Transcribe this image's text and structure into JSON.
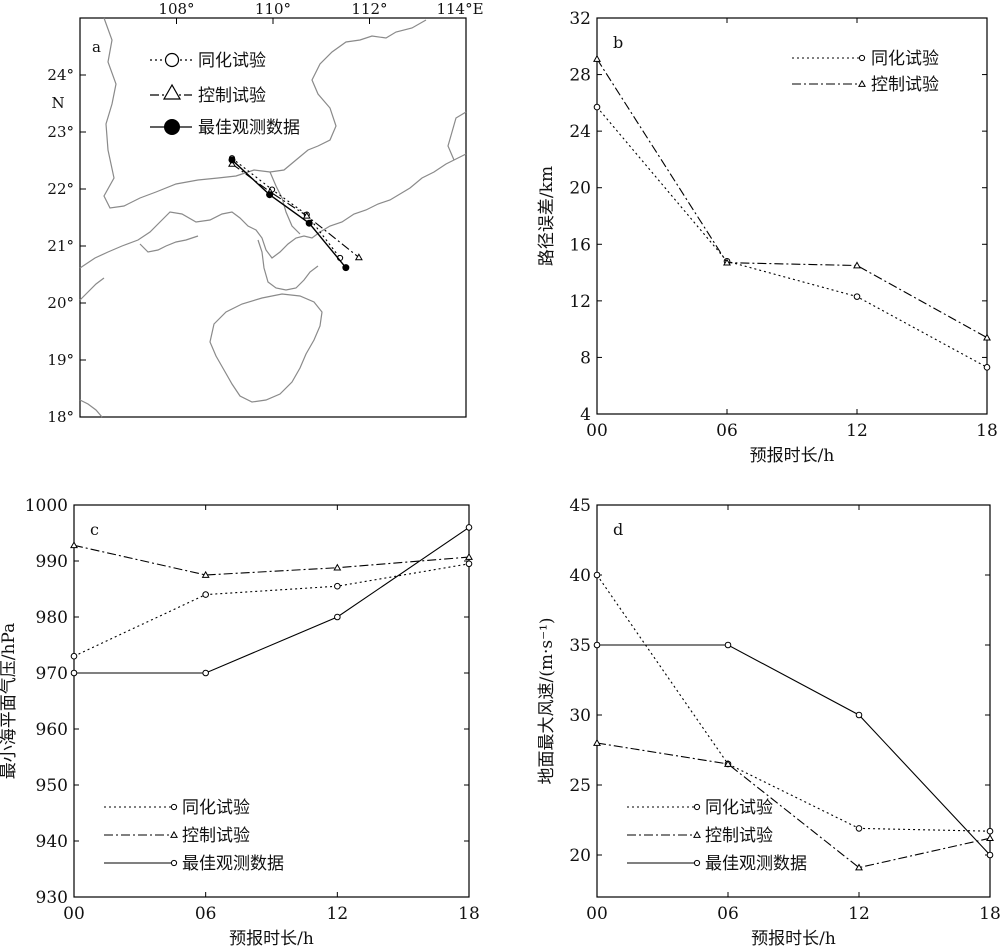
{
  "panels": [
    {
      "id": "a",
      "letter": "a",
      "type": "map",
      "lon_ticks": [
        "108°",
        "110°",
        "112°",
        "114°E"
      ],
      "lat_ticks": [
        "18°",
        "19°",
        "20°",
        "21°",
        "22°",
        "23°",
        "24°"
      ],
      "lat_unit": "N",
      "legend": [
        "同化试验",
        "控制试验",
        "最佳观测数据"
      ],
      "series": [
        {
          "name": "同化试验",
          "style": "dotted",
          "marker": "circle",
          "lon": [
            109.15,
            109.98,
            110.7,
            111.39
          ],
          "lat": [
            22.54,
            21.99,
            21.55,
            20.79
          ]
        },
        {
          "name": "控制试验",
          "style": "dashdot",
          "marker": "triangle",
          "lon": [
            109.15,
            109.94,
            110.7,
            111.78
          ],
          "lat": [
            22.44,
            21.95,
            21.53,
            20.8
          ]
        },
        {
          "name": "最佳观测数据",
          "style": "solid",
          "marker": "filled-circle",
          "lon": [
            109.15,
            109.93,
            110.75,
            111.51
          ],
          "lat": [
            22.51,
            21.9,
            21.4,
            20.62
          ]
        }
      ]
    },
    {
      "id": "b",
      "letter": "b",
      "type": "line",
      "x": [
        "00",
        "06",
        "12",
        "18"
      ],
      "ylabel": "路径误差/km",
      "xlabel": "预报时长/h",
      "yticks": [
        4,
        8,
        12,
        16,
        20,
        24,
        28,
        32
      ],
      "ylim": [
        4,
        32
      ],
      "legend_position": "top-right",
      "series": [
        {
          "name": "同化试验",
          "style": "dotted",
          "marker": "circle",
          "values": [
            25.7,
            14.8,
            12.3,
            7.3
          ]
        },
        {
          "name": "控制试验",
          "style": "dashdot",
          "marker": "triangle",
          "values": [
            29.1,
            14.7,
            14.5,
            9.4
          ]
        }
      ]
    },
    {
      "id": "c",
      "letter": "c",
      "type": "line",
      "x": [
        "00",
        "06",
        "12",
        "18"
      ],
      "ylabel": "最小海平面气压/hPa",
      "xlabel": "预报时长/h",
      "yticks": [
        930,
        940,
        950,
        960,
        970,
        980,
        990,
        1000
      ],
      "ylim": [
        930,
        1000
      ],
      "legend_position": "bottom-left",
      "series": [
        {
          "name": "同化试验",
          "style": "dotted",
          "marker": "circle",
          "values": [
            973,
            984,
            985.5,
            989.5
          ]
        },
        {
          "name": "控制试验",
          "style": "dashdot",
          "marker": "triangle",
          "values": [
            992.8,
            987.5,
            988.8,
            990.7
          ]
        },
        {
          "name": "最佳观测数据",
          "style": "solid",
          "marker": "circle",
          "values": [
            970,
            970,
            980,
            996
          ]
        }
      ]
    },
    {
      "id": "d",
      "letter": "d",
      "type": "line",
      "x": [
        "00",
        "06",
        "12",
        "18"
      ],
      "ylabel": "地面最大风速/(m·s⁻¹)",
      "xlabel": "预报时长/h",
      "yticks": [
        20,
        25,
        30,
        35,
        40,
        45
      ],
      "ylim": [
        17,
        45
      ],
      "legend_position": "bottom-left",
      "series": [
        {
          "name": "同化试验",
          "style": "dotted",
          "marker": "circle",
          "values": [
            40,
            26.5,
            21.9,
            21.7
          ]
        },
        {
          "name": "控制试验",
          "style": "dashdot",
          "marker": "triangle",
          "values": [
            28,
            26.5,
            19.1,
            21.2
          ]
        },
        {
          "name": "最佳观测数据",
          "style": "solid",
          "marker": "circle",
          "values": [
            35,
            35,
            30,
            20
          ]
        }
      ]
    }
  ],
  "chart_data": [
    {
      "type": "line",
      "title": "",
      "xlabel": "",
      "ylabel": "",
      "x_unit": "longitude °E",
      "y_unit": "latitude °N",
      "xlim": [
        106.0,
        114.0
      ],
      "ylim": [
        18.0,
        25.0
      ],
      "series": [
        {
          "name": "同化试验",
          "x": [
            109.15,
            109.98,
            110.7,
            111.39
          ],
          "y": [
            22.54,
            21.99,
            21.55,
            20.79
          ]
        },
        {
          "name": "控制试验",
          "x": [
            109.15,
            109.94,
            110.7,
            111.78
          ],
          "y": [
            22.44,
            21.95,
            21.53,
            20.8
          ]
        },
        {
          "name": "最佳观测数据",
          "x": [
            109.15,
            109.93,
            110.75,
            111.51
          ],
          "y": [
            22.51,
            21.9,
            21.4,
            20.62
          ]
        }
      ]
    },
    {
      "type": "line",
      "categories": [
        "00",
        "06",
        "12",
        "18"
      ],
      "xlabel": "预报时长/h",
      "ylabel": "路径误差/km",
      "ylim": [
        4,
        32
      ],
      "series": [
        {
          "name": "同化试验",
          "values": [
            25.7,
            14.8,
            12.3,
            7.3
          ]
        },
        {
          "name": "控制试验",
          "values": [
            29.1,
            14.7,
            14.5,
            9.4
          ]
        }
      ]
    },
    {
      "type": "line",
      "categories": [
        "00",
        "06",
        "12",
        "18"
      ],
      "xlabel": "预报时长/h",
      "ylabel": "最小海平面气压/hPa",
      "ylim": [
        930,
        1000
      ],
      "series": [
        {
          "name": "同化试验",
          "values": [
            973,
            984,
            985.5,
            989.5
          ]
        },
        {
          "name": "控制试验",
          "values": [
            992.8,
            987.5,
            988.8,
            990.7
          ]
        },
        {
          "name": "最佳观测数据",
          "values": [
            970,
            970,
            980,
            996
          ]
        }
      ]
    },
    {
      "type": "line",
      "categories": [
        "00",
        "06",
        "12",
        "18"
      ],
      "xlabel": "预报时长/h",
      "ylabel": "地面最大风速/(m·s⁻¹)",
      "ylim": [
        17,
        45
      ],
      "series": [
        {
          "name": "同化试验",
          "values": [
            40,
            26.5,
            21.9,
            21.7
          ]
        },
        {
          "name": "控制试验",
          "values": [
            28,
            26.5,
            19.1,
            21.2
          ]
        },
        {
          "name": "最佳观测数据",
          "values": [
            35,
            35,
            30,
            20
          ]
        }
      ]
    }
  ]
}
